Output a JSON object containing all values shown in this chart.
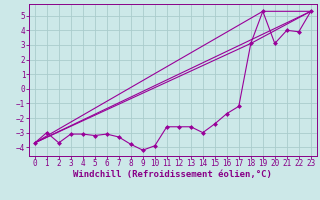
{
  "xlabel": "Windchill (Refroidissement éolien,°C)",
  "background_color": "#cce8e8",
  "grid_color": "#aacccc",
  "line_color": "#990099",
  "xlim": [
    -0.5,
    23.5
  ],
  "ylim": [
    -4.6,
    5.8
  ],
  "yticks": [
    -4,
    -3,
    -2,
    -1,
    0,
    1,
    2,
    3,
    4,
    5
  ],
  "xticks": [
    0,
    1,
    2,
    3,
    4,
    5,
    6,
    7,
    8,
    9,
    10,
    11,
    12,
    13,
    14,
    15,
    16,
    17,
    18,
    19,
    20,
    21,
    22,
    23
  ],
  "line1_x": [
    0,
    1,
    2,
    3,
    4,
    5,
    6,
    7,
    8,
    9,
    10,
    11,
    12,
    13,
    14,
    15,
    16,
    17,
    18,
    19,
    20,
    21,
    22,
    23
  ],
  "line1_y": [
    -3.7,
    -3.0,
    -3.7,
    -3.1,
    -3.1,
    -3.2,
    -3.1,
    -3.3,
    -3.8,
    -4.2,
    -3.9,
    -2.6,
    -2.6,
    -2.6,
    -3.0,
    -2.4,
    -1.7,
    -1.2,
    3.1,
    5.3,
    3.1,
    4.0,
    3.9,
    5.3
  ],
  "line2_x": [
    0,
    23
  ],
  "line2_y": [
    -3.7,
    5.3
  ],
  "line3_x": [
    0,
    19,
    23
  ],
  "line3_y": [
    -3.7,
    5.3,
    5.3
  ],
  "line4_x": [
    0,
    18,
    23
  ],
  "line4_y": [
    -3.7,
    3.1,
    5.3
  ],
  "markersize": 2.5,
  "linewidth": 0.8,
  "tick_fontsize": 5.5,
  "label_fontsize": 6.5
}
